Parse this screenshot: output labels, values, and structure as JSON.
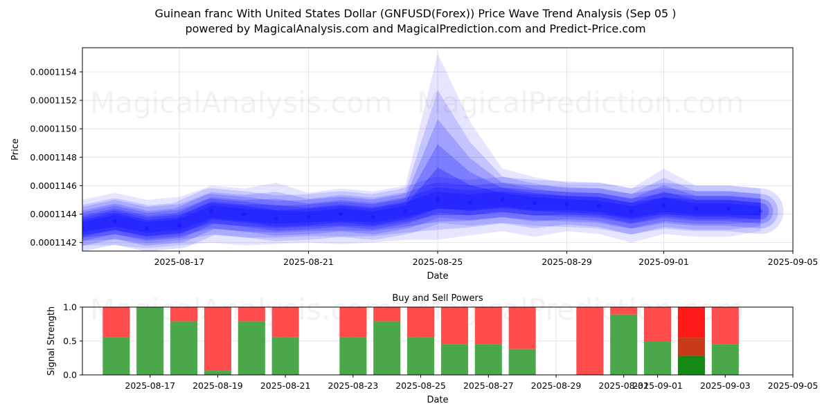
{
  "header": {
    "title": "Guinean franc With United States Dollar (GNFUSD(Forex)) Price Wave Trend Analysis (Sep 05 )",
    "subtitle": "powered by MagicalAnalysis.com and MagicalPrediction.com and Predict-Price.com"
  },
  "watermarks": [
    "MagicalAnalysis.com",
    "MagicalPrediction.com"
  ],
  "colors": {
    "wave": "#0000ff",
    "buy": "#4aa84a",
    "sell": "#ff4d4d",
    "buy_strong": "#138a13",
    "sell_strong": "#ff1a1a",
    "mixed": "#c93a1a"
  },
  "chart_data": [
    {
      "type": "area",
      "xlabel": "Date",
      "ylabel": "Price",
      "xlim": [
        "2025-08-14",
        "2025-09-05"
      ],
      "ylim": [
        0.00011414,
        0.00011557
      ],
      "x_ticks": [
        "2025-08-17",
        "2025-08-21",
        "2025-08-25",
        "2025-08-29",
        "2025-09-01",
        "2025-09-05"
      ],
      "y_ticks": [
        "0.0001142",
        "0.0001144",
        "0.0001146",
        "0.0001148",
        "0.0001150",
        "0.0001152",
        "0.0001154"
      ],
      "grid": true,
      "x": [
        "2025-08-14",
        "2025-08-15",
        "2025-08-16",
        "2025-08-17",
        "2025-08-18",
        "2025-08-19",
        "2025-08-20",
        "2025-08-21",
        "2025-08-22",
        "2025-08-23",
        "2025-08-24",
        "2025-08-25",
        "2025-08-26",
        "2025-08-27",
        "2025-08-28",
        "2025-08-29",
        "2025-08-30",
        "2025-08-31",
        "2025-09-01",
        "2025-09-02",
        "2025-09-03",
        "2025-09-04"
      ],
      "series": [
        {
          "values": [
            0.0001143,
            0.00011435,
            0.0001143,
            0.00011432,
            0.00011442,
            0.0001144,
            0.00011437,
            0.00011438,
            0.0001144,
            0.00011438,
            0.00011442,
            0.0001145,
            0.00011448,
            0.0001145,
            0.00011448,
            0.00011447,
            0.00011446,
            0.00011442,
            0.00011446,
            0.00011444,
            0.00011444,
            0.00011442
          ],
          "upper": [
            0.0001145,
            0.00011455,
            0.0001145,
            0.00011452,
            0.0001146,
            0.00011458,
            0.00011462,
            0.00011455,
            0.00011458,
            0.00011456,
            0.0001146,
            0.00011553,
            0.00011505,
            0.00011472,
            0.00011466,
            0.00011462,
            0.00011462,
            0.00011458,
            0.00011472,
            0.0001146,
            0.0001146,
            0.00011458
          ],
          "lower": [
            0.00011418,
            0.00011418,
            0.00011416,
            0.00011418,
            0.0001142,
            0.00011418,
            0.00011419,
            0.0001142,
            0.00011419,
            0.0001142,
            0.00011422,
            0.00011422,
            0.00011425,
            0.00011428,
            0.00011424,
            0.00011428,
            0.00011426,
            0.0001142,
            0.00011426,
            0.00011424,
            0.00011424,
            0.00011428
          ]
        }
      ]
    },
    {
      "type": "bar",
      "title": "Buy and Sell Powers",
      "xlabel": "Date",
      "ylabel": "Signal Strength",
      "xlim": [
        "2025-08-15",
        "2025-09-05"
      ],
      "ylim": [
        0,
        1
      ],
      "y_ticks": [
        "0.0",
        "0.5",
        "1.0"
      ],
      "x_ticks": [
        "2025-08-17",
        "2025-08-19",
        "2025-08-21",
        "2025-08-23",
        "2025-08-25",
        "2025-08-27",
        "2025-08-29",
        "2025-08-31",
        "2025-09-01",
        "2025-09-03",
        "2025-09-05"
      ],
      "grid": true,
      "categories": [
        "2025-08-16",
        "2025-08-17",
        "2025-08-18",
        "2025-08-19",
        "2025-08-20",
        "2025-08-21",
        "2025-08-23",
        "2025-08-24",
        "2025-08-25",
        "2025-08-26",
        "2025-08-27",
        "2025-08-28",
        "2025-08-30",
        "2025-08-31",
        "2025-09-01",
        "2025-09-02",
        "2025-09-03"
      ],
      "series": [
        {
          "values": [
            0.56,
            1.0,
            0.79,
            0.06,
            0.79,
            0.56,
            0.56,
            0.79,
            0.56,
            0.45,
            0.45,
            0.38,
            0.0,
            0.89,
            0.5,
            0.28,
            0.45
          ]
        },
        {
          "values": [
            0.44,
            0.0,
            0.21,
            0.94,
            0.21,
            0.44,
            0.44,
            0.21,
            0.44,
            0.55,
            0.55,
            0.62,
            1.0,
            0.11,
            0.5,
            0.72,
            0.55
          ]
        }
      ]
    }
  ]
}
